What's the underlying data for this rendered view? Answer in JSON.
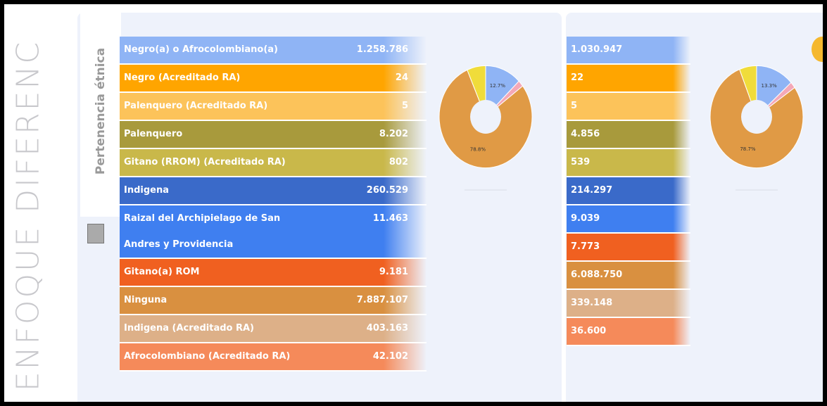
{
  "sidebar_title": "ENFOQUE DIFERENC",
  "tab_label": "Pertenencia étnica",
  "table_left": {
    "rows": [
      {
        "label": "Negro(a) o Afrocolombiano(a)",
        "value": "1.258.786",
        "color": "#8fb4f5"
      },
      {
        "label": "Negro (Acreditado RA)",
        "value": "24",
        "color": "#ffa500"
      },
      {
        "label": "Palenquero (Acreditado RA)",
        "value": "5",
        "color": "#fcc35a"
      },
      {
        "label": "Palenquero",
        "value": "8.202",
        "color": "#a89a3c"
      },
      {
        "label": "Gitano (RROM) (Acreditado RA)",
        "value": "802",
        "color": "#c9b84a"
      },
      {
        "label": "Indigena",
        "value": "260.529",
        "color": "#3a6ac9"
      },
      {
        "label": "Raizal del Archipielago de San Andres y Providencia",
        "value": "11.463",
        "color": "#3f7ff0"
      },
      {
        "label": "Gitano(a) ROM",
        "value": "9.181",
        "color": "#f06020"
      },
      {
        "label": "Ninguna",
        "value": "7.887.107",
        "color": "#d99040"
      },
      {
        "label": "Indigena (Acreditado RA)",
        "value": "403.163",
        "color": "#ddb088"
      },
      {
        "label": "Afrocolombiano (Acreditado RA)",
        "value": "42.102",
        "color": "#f58a5a"
      }
    ]
  },
  "table_right": {
    "rows": [
      {
        "value": "1.030.947",
        "color": "#8fb4f5"
      },
      {
        "value": "22",
        "color": "#ffa500"
      },
      {
        "value": "5",
        "color": "#fcc35a"
      },
      {
        "value": "4.856",
        "color": "#a89a3c"
      },
      {
        "value": "539",
        "color": "#c9b84a"
      },
      {
        "value": "214.297",
        "color": "#3a6ac9"
      },
      {
        "value": "9.039",
        "color": "#3f7ff0"
      },
      {
        "value": "7.773",
        "color": "#f06020"
      },
      {
        "value": "6.088.750",
        "color": "#d99040"
      },
      {
        "value": "339.148",
        "color": "#ddb088"
      },
      {
        "value": "36.600",
        "color": "#f58a5a"
      }
    ]
  },
  "pies": [
    {
      "slices": [
        {
          "value": 12.7,
          "label": "12.7%",
          "color": "#8fb4f5"
        },
        {
          "value": 2,
          "color": "#f4a8b8"
        },
        {
          "value": 78.8,
          "label": "78.8%",
          "color": "#e09a45"
        },
        {
          "value": 6.5,
          "color": "#f0dc3a"
        }
      ]
    },
    {
      "slices": [
        {
          "value": 13.3,
          "label": "13.3%",
          "color": "#8fb4f5"
        },
        {
          "value": 2,
          "color": "#f4a8b8"
        },
        {
          "value": 78.7,
          "label": "78.7%",
          "color": "#e09a45"
        },
        {
          "value": 6,
          "color": "#f0dc3a"
        }
      ]
    }
  ]
}
